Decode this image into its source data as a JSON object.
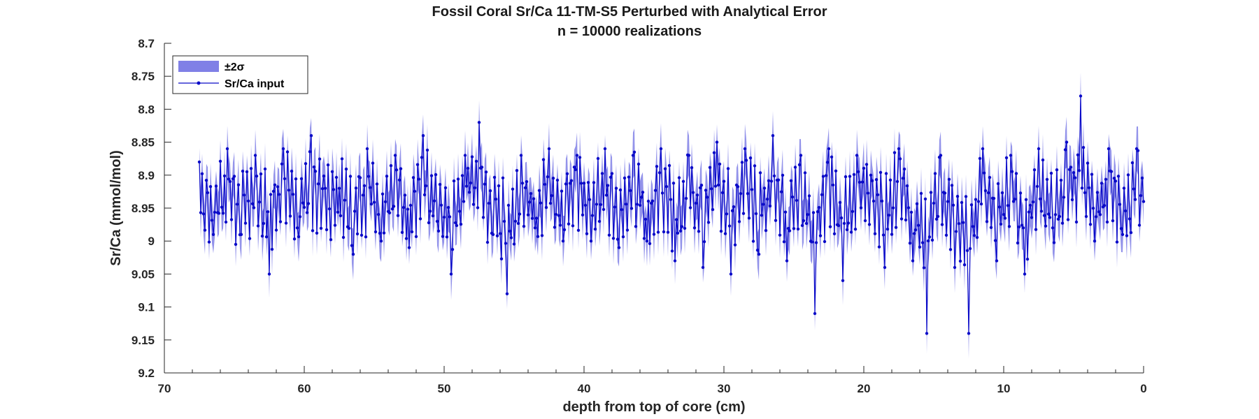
{
  "chart_data": {
    "type": "line",
    "title": "Fossil Coral Sr/Ca 11-TM-S5 Perturbed with Analytical Error",
    "subtitle": "n = 10000 realizations",
    "xlabel": "depth from top of core (cm)",
    "ylabel": "Sr/Ca (mmol/mol)",
    "xlim": [
      70,
      0
    ],
    "x_reversed": true,
    "ylim": [
      8.7,
      9.2
    ],
    "y_reversed": true,
    "x_ticks": [
      "70",
      "60",
      "50",
      "40",
      "30",
      "20",
      "10",
      "0"
    ],
    "y_ticks": [
      "8.7",
      "8.75",
      "8.8",
      "8.85",
      "8.9",
      "8.95",
      "9",
      "9.05",
      "9.1",
      "9.15",
      "9.2"
    ],
    "grid": false,
    "legend": {
      "placement": "top-left",
      "entries": [
        {
          "label": "±2σ",
          "kind": "band",
          "color": "#8080e6"
        },
        {
          "label": "Sr/Ca input",
          "kind": "line-marker",
          "color": "#0a0ac8"
        }
      ]
    },
    "colors": {
      "band": "#8080e6",
      "line": "#0a0ac8"
    },
    "band_halfwidth": 0.03,
    "series": [
      {
        "name": "Sr/Ca input",
        "x_start": 67.5,
        "x_step": 0.1,
        "y_start_note": "",
        "x": [
          67.5,
          66.5,
          65.5,
          64.5,
          63.5,
          62.5,
          61.5,
          60.5,
          59.5,
          58.5,
          57.5,
          56.5,
          55.5,
          54.5,
          53.5,
          52.5,
          51.5,
          50.5,
          49.5,
          48.5,
          47.5,
          46.5,
          45.5,
          44.5,
          43.5,
          42.5,
          41.5,
          40.5,
          39.5,
          38.5,
          37.5,
          36.5,
          35.5,
          34.5,
          33.5,
          32.5,
          31.5,
          30.5,
          29.5,
          28.5,
          27.5,
          26.5,
          25.5,
          24.5,
          23.5,
          22.5,
          21.5,
          20.5,
          19.5,
          18.5,
          17.5,
          16.5,
          15.5,
          14.5,
          13.5,
          12.5,
          11.5,
          10.5,
          9.5,
          8.5,
          7.5,
          6.5,
          5.5,
          4.5,
          3.5,
          2.5,
          1.5,
          0.5,
          0.0
        ],
        "y": [
          8.88,
          8.99,
          8.86,
          8.99,
          8.87,
          9.05,
          8.86,
          8.98,
          8.84,
          8.92,
          8.92,
          9.02,
          8.86,
          9.0,
          8.87,
          9.01,
          8.84,
          8.97,
          9.05,
          8.87,
          8.82,
          8.99,
          9.08,
          8.87,
          8.98,
          8.86,
          9.0,
          8.87,
          9.0,
          8.86,
          9.01,
          8.87,
          9.0,
          8.86,
          9.03,
          8.87,
          9.04,
          8.85,
          9.05,
          8.86,
          9.02,
          8.84,
          9.03,
          8.87,
          9.11,
          8.86,
          9.06,
          8.87,
          8.9,
          9.04,
          8.86,
          9.03,
          9.14,
          8.87,
          9.04,
          9.14,
          8.86,
          9.03,
          8.87,
          9.05,
          8.86,
          8.98,
          8.85,
          8.78,
          9.0,
          8.86,
          8.99,
          8.86,
          8.94
        ]
      }
    ],
    "dense_series_sampling": 0.1
  }
}
